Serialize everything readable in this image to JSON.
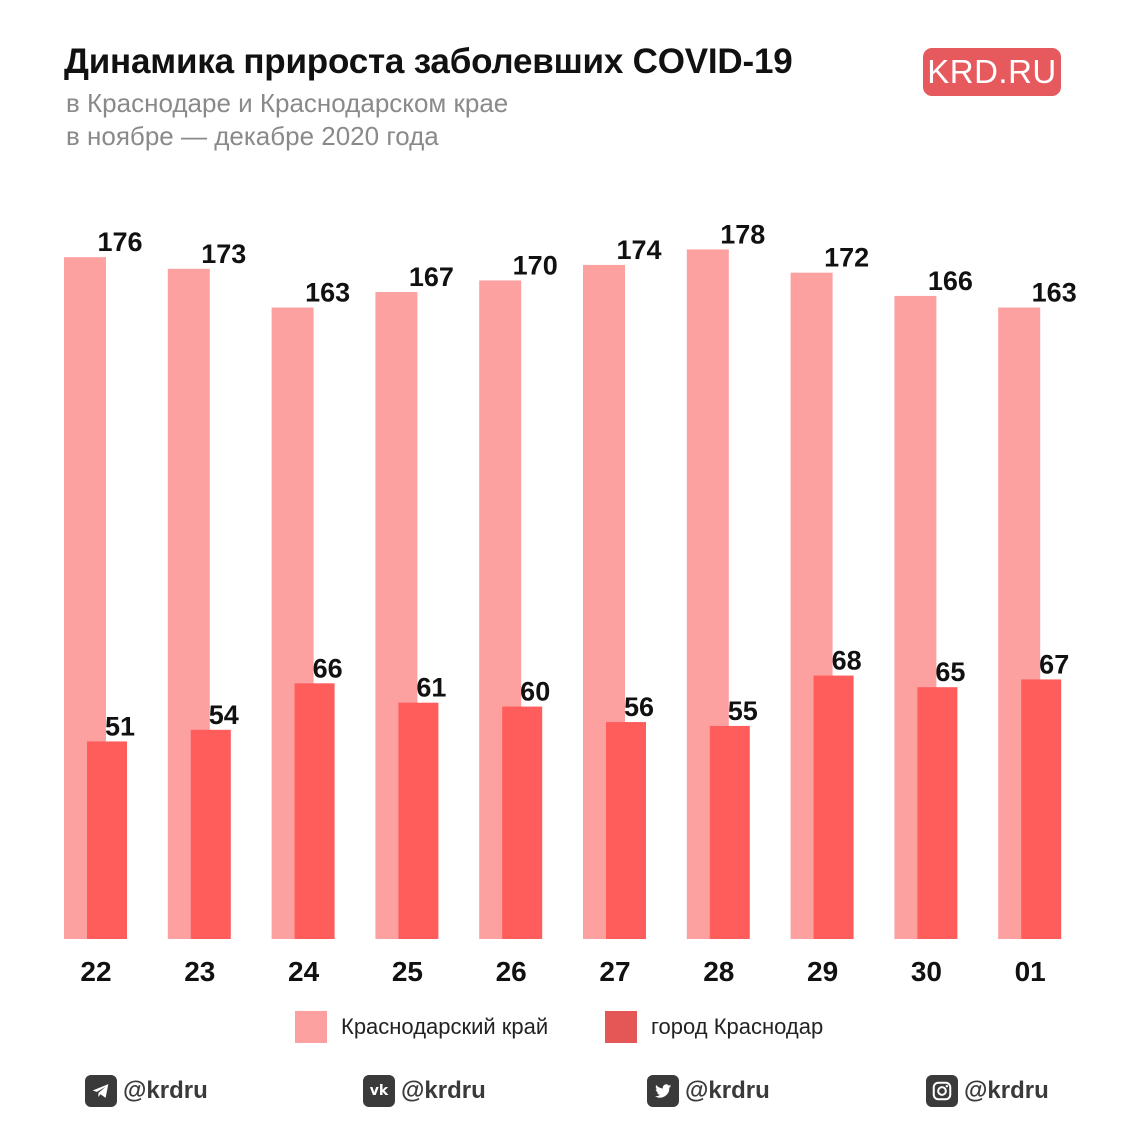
{
  "header": {
    "title": "Динамика прироста заболевших COVID-19",
    "subtitle_line1": "в Краснодаре и Краснодарском крае",
    "subtitle_line2": "в ноябре — декабре 2020 года",
    "logo": "KRD.RU"
  },
  "colors": {
    "region": "#fca0a0",
    "city": "#ff5c5c",
    "legend_city": "#e55656",
    "logo": "#e65a5e",
    "text": "#111111",
    "social": "#3a3a3a"
  },
  "chart_data": {
    "type": "bar",
    "categories": [
      "22",
      "23",
      "24",
      "25",
      "26",
      "27",
      "28",
      "29",
      "30",
      "01"
    ],
    "series": [
      {
        "name": "Краснодарский край",
        "values": [
          176,
          173,
          163,
          167,
          170,
          174,
          178,
          172,
          166,
          163
        ]
      },
      {
        "name": "город Краснодар",
        "values": [
          51,
          54,
          66,
          61,
          60,
          56,
          55,
          68,
          65,
          67
        ]
      }
    ],
    "title": "Динамика прироста заболевших COVID-19",
    "xlabel": "",
    "ylabel": "",
    "ylim": [
      0,
      178
    ],
    "grid": false,
    "legend": "bottom",
    "data_labels": true
  },
  "legend": {
    "items": [
      {
        "label": "Краснодарский край",
        "color": "#fca0a0"
      },
      {
        "label": "город Краснодар",
        "color": "#e55656"
      }
    ]
  },
  "footer": {
    "socials": [
      {
        "icon": "telegram-icon",
        "label": "@krdru"
      },
      {
        "icon": "vk-icon",
        "label": "@krdru"
      },
      {
        "icon": "twitter-icon",
        "label": "@krdru"
      },
      {
        "icon": "instagram-icon",
        "label": "@krdru"
      }
    ]
  }
}
